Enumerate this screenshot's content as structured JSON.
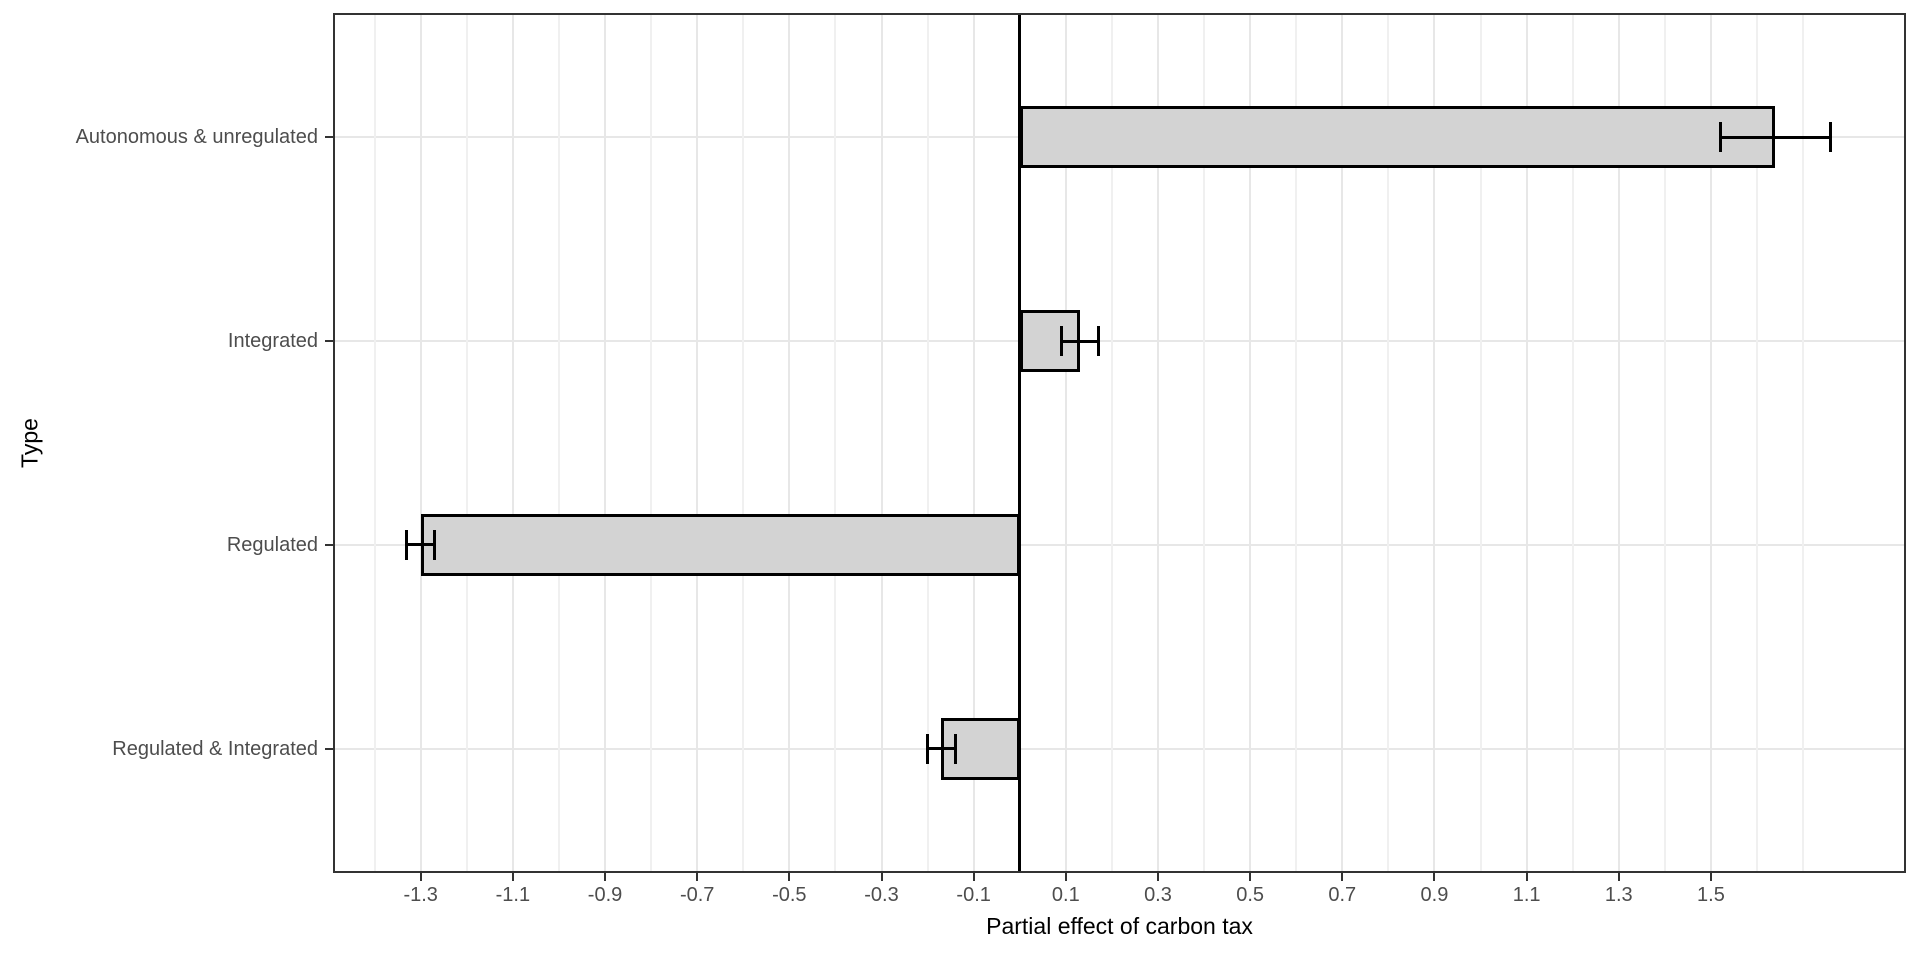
{
  "chart_data": {
    "type": "bar",
    "orientation": "horizontal",
    "xlabel": "Partial effect of carbon tax",
    "ylabel": "Type",
    "categories": [
      "Autonomous & unregulated",
      "Integrated",
      "Regulated",
      "Regulated & Integrated"
    ],
    "values": [
      1.64,
      0.13,
      -1.3,
      -0.17
    ],
    "error_low": [
      1.52,
      0.09,
      -1.33,
      -0.2
    ],
    "error_high": [
      1.76,
      0.17,
      -1.27,
      -0.14
    ],
    "zero_reference_line": 0,
    "xlim": [
      -1.486,
      1.919
    ],
    "x_major_ticks": [
      -1.3,
      -1.1,
      -0.9,
      -0.7,
      -0.5,
      -0.3,
      -0.1,
      0.1,
      0.3,
      0.5,
      0.7,
      0.9,
      1.1,
      1.3,
      1.5
    ],
    "x_tick_labels": [
      "-1.3",
      "-1.1",
      "-0.9",
      "-0.7",
      "-0.5",
      "-0.3",
      "-0.1",
      "0.1",
      "0.3",
      "0.5",
      "0.7",
      "0.9",
      "1.1",
      "1.3",
      "1.5"
    ],
    "x_minor_gridlines": [
      -1.4,
      -1.2,
      -1.0,
      -0.8,
      -0.6,
      -0.4,
      -0.2,
      0.2,
      0.4,
      0.6,
      0.8,
      1.0,
      1.2,
      1.4,
      1.6,
      1.7
    ],
    "grid": true,
    "legend_position": "none",
    "colors": {
      "bar_fill": "#d3d3d3",
      "bar_border": "#000000",
      "error_bar": "#000000",
      "zero_line": "#000000",
      "grid_major": "#e7e7e7",
      "grid_minor": "#f0f0f0",
      "panel_border": "#333333",
      "axis_text": "#4d4d4d",
      "axis_title": "#000000",
      "background": "#ffffff"
    }
  }
}
